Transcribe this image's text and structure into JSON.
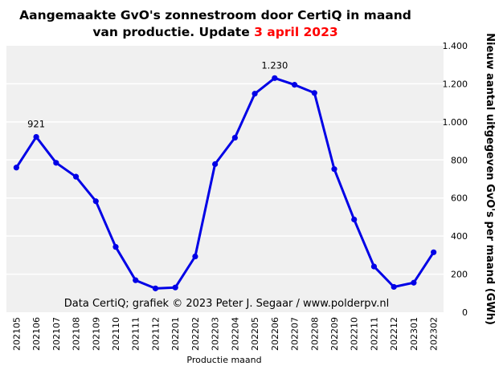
{
  "chart_data": {
    "type": "line",
    "title_part1": "Aangemaakte GvO's zonnestroom door CertiQ in maand",
    "title_part2": "van productie. Update",
    "title_date": "3 april 2023",
    "xlabel": "Productie maand",
    "ylabel": "Nieuw aantal uitgegeven GvO's per maand (GWh)",
    "credit": "Data CertiQ; grafiek © 2023 Peter J. Segaar / www.polderpv.nl",
    "ylim": [
      0,
      1400
    ],
    "yticks": [
      0,
      200,
      400,
      600,
      800,
      1000,
      1200,
      1400
    ],
    "ytick_labels": [
      "0",
      "200",
      "400",
      "600",
      "800",
      "1.000",
      "1.200",
      "1.400"
    ],
    "categories": [
      "202105",
      "202106",
      "202107",
      "202108",
      "202109",
      "202110",
      "202111",
      "202112",
      "202201",
      "202202",
      "202203",
      "202204",
      "202205",
      "202206",
      "202207",
      "202208",
      "202209",
      "202210",
      "202211",
      "202212",
      "202301",
      "202302"
    ],
    "series": [
      {
        "values": [
          760,
          921,
          785,
          712,
          583,
          343,
          168,
          125,
          130,
          293,
          778,
          917,
          1148,
          1230,
          1195,
          1152,
          752,
          487,
          240,
          133,
          155,
          315
        ]
      }
    ],
    "annotations": [
      {
        "index": 1,
        "label": "921"
      },
      {
        "index": 13,
        "label": "1.230"
      }
    ],
    "colors": {
      "line": "#0000e6",
      "plot_background": "#f0f0f0",
      "grid": "#ffffff",
      "title_date": "#ff0000"
    },
    "grid": true,
    "legend": "none"
  }
}
